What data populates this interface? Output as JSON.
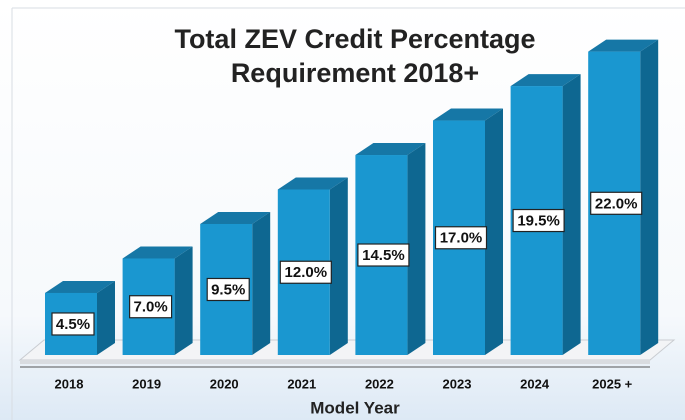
{
  "chart_data": {
    "type": "bar3d",
    "title": "Total ZEV Credit Percentage Requirement 2018+",
    "x_label": "Model Year",
    "categories": [
      "2018",
      "2019",
      "2020",
      "2021",
      "2022",
      "2023",
      "2024",
      "2025 +"
    ],
    "values": [
      4.5,
      7.0,
      9.5,
      12.0,
      14.5,
      17.0,
      19.5,
      22.0
    ],
    "value_labels": [
      "4.5%",
      "7.0%",
      "9.5%",
      "12.0%",
      "14.5%",
      "17.0%",
      "19.5%",
      "22.0%"
    ],
    "color": "#1a97d0",
    "ylim": [
      0,
      24
    ]
  }
}
